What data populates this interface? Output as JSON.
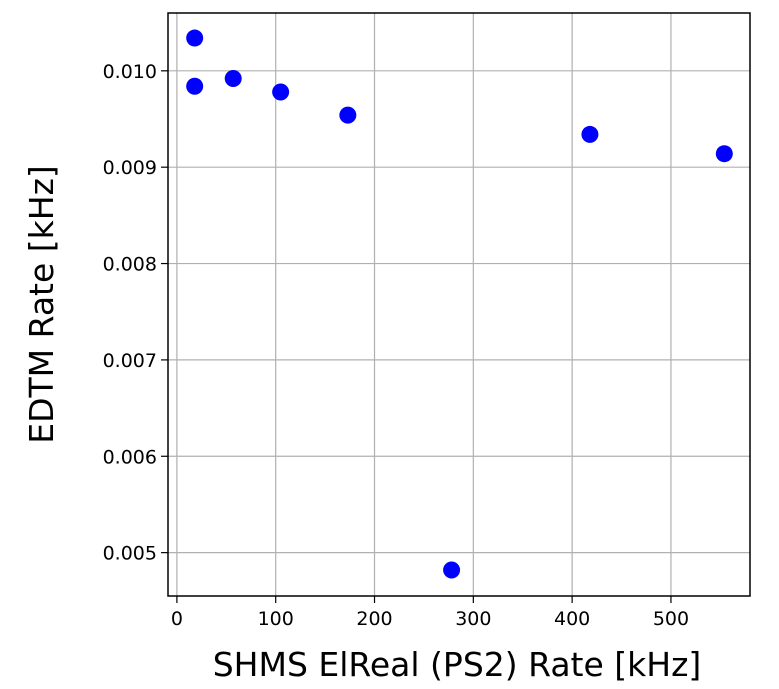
{
  "chart_data": {
    "type": "scatter",
    "title": "",
    "xlabel": "SHMS ElReal (PS2) Rate [kHz]",
    "ylabel": "EDTM Rate [kHz]",
    "xlim": [
      -9,
      580
    ],
    "ylim": [
      0.00455,
      0.0106
    ],
    "grid": true,
    "xticks": [
      0,
      100,
      200,
      300,
      400,
      500
    ],
    "xtick_labels": [
      "0",
      "100",
      "200",
      "300",
      "400",
      "500"
    ],
    "yticks": [
      0.005,
      0.006,
      0.007,
      0.008,
      0.009,
      0.01
    ],
    "ytick_labels": [
      "0.005",
      "0.006",
      "0.007",
      "0.008",
      "0.009",
      "0.010"
    ],
    "series": [
      {
        "color": "#0000ff",
        "marker": "circle",
        "points": [
          {
            "x": 18,
            "y": 0.01034
          },
          {
            "x": 18,
            "y": 0.00984
          },
          {
            "x": 57,
            "y": 0.00992
          },
          {
            "x": 105,
            "y": 0.00978
          },
          {
            "x": 173,
            "y": 0.00954
          },
          {
            "x": 278,
            "y": 0.00482
          },
          {
            "x": 418,
            "y": 0.00934
          },
          {
            "x": 554,
            "y": 0.00914
          }
        ]
      }
    ]
  }
}
